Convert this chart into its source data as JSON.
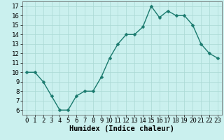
{
  "x": [
    0,
    1,
    2,
    3,
    4,
    5,
    6,
    7,
    8,
    9,
    10,
    11,
    12,
    13,
    14,
    15,
    16,
    17,
    18,
    19,
    20,
    21,
    22,
    23
  ],
  "y": [
    10,
    10,
    9,
    7.5,
    6,
    6,
    7.5,
    8,
    8,
    9.5,
    11.5,
    13,
    14,
    14,
    14.8,
    17,
    15.8,
    16.5,
    16,
    16,
    15,
    13,
    12,
    11.5
  ],
  "line_color": "#1a7a6e",
  "marker_color": "#1a7a6e",
  "bg_color": "#caf0ee",
  "grid_color": "#aad8d4",
  "xlabel": "Humidex (Indice chaleur)",
  "xlim": [
    -0.5,
    23.5
  ],
  "ylim": [
    5.5,
    17.5
  ],
  "yticks": [
    6,
    7,
    8,
    9,
    10,
    11,
    12,
    13,
    14,
    15,
    16,
    17
  ],
  "xticks": [
    0,
    1,
    2,
    3,
    4,
    5,
    6,
    7,
    8,
    9,
    10,
    11,
    12,
    13,
    14,
    15,
    16,
    17,
    18,
    19,
    20,
    21,
    22,
    23
  ],
  "xlabel_fontsize": 7.5,
  "tick_fontsize": 6.5,
  "line_width": 1.0,
  "marker_size": 2.5
}
